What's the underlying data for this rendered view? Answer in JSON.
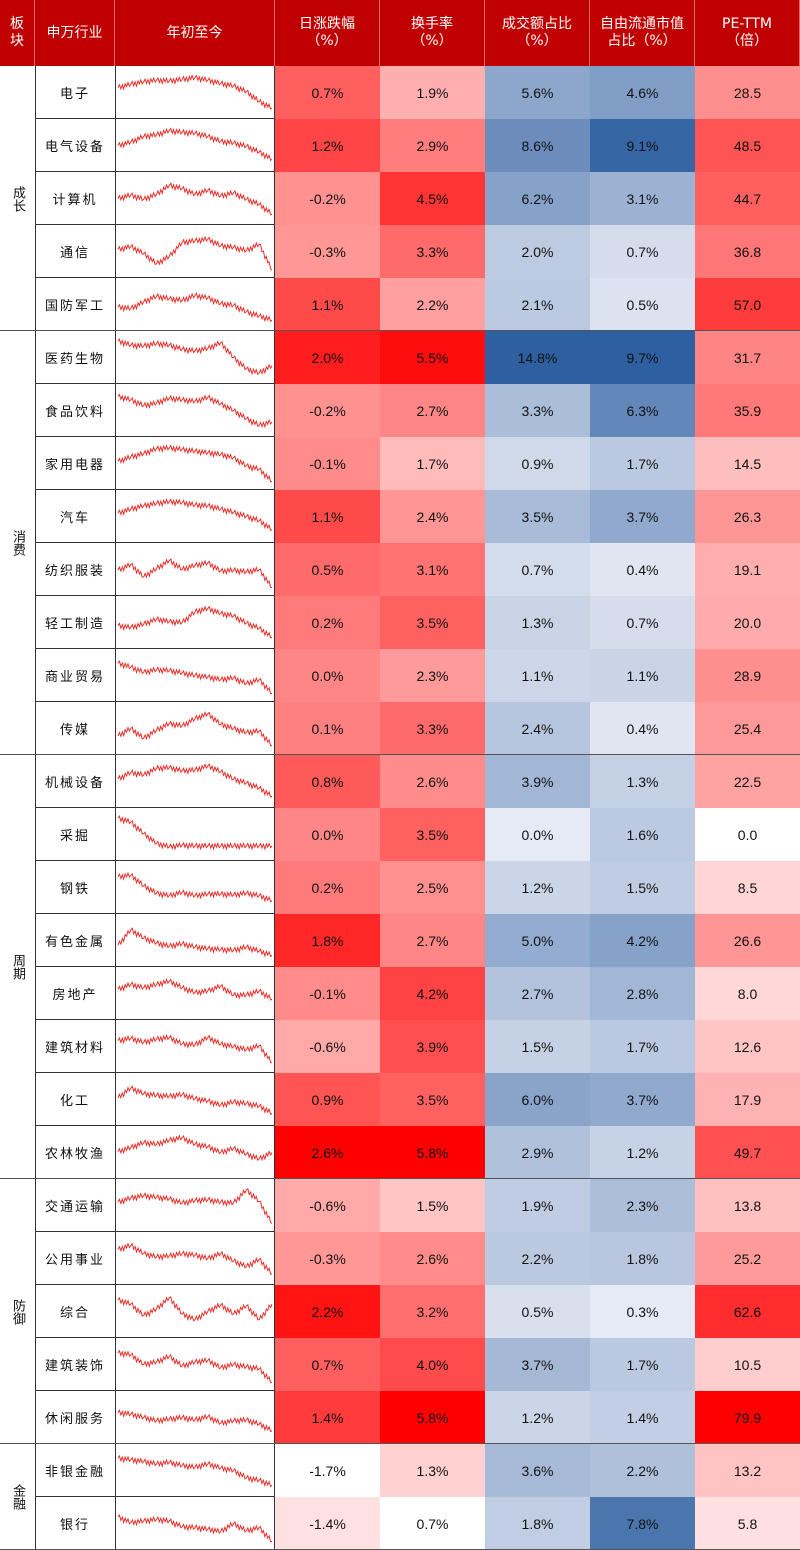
{
  "headers": {
    "sector": "板块",
    "industry": "申万行业",
    "ytd": "年初至今",
    "daily_change": [
      "日涨跌幅",
      "（%）"
    ],
    "turnover": [
      "换手率",
      "（%）"
    ],
    "volume_share": [
      "成交额占比",
      "（%）"
    ],
    "float_cap_share": [
      "自由流通市值",
      "占比（%）"
    ],
    "pe_ttm": [
      "PE-TTM",
      "（倍）"
    ]
  },
  "colors": {
    "header_bg": "#c00000",
    "header_text": "#ffffff",
    "sparkline": "#e8302a",
    "red_scale": "#ff0000",
    "blue_scale": "#2e5fa0"
  },
  "chart_data": {
    "type": "table",
    "columns": [
      "板块",
      "申万行业",
      "年初至今",
      "日涨跌幅（%）",
      "换手率（%）",
      "成交额占比（%）",
      "自由流通市值占比（%）",
      "PE-TTM（倍）"
    ],
    "sectors": [
      {
        "name": "成长",
        "rows": [
          {
            "industry": "电子",
            "daily_change": "0.7%",
            "turnover": "1.9%",
            "volume_share": "5.6%",
            "float_cap_share": "4.6%",
            "pe_ttm": "28.5"
          },
          {
            "industry": "电气设备",
            "daily_change": "1.2%",
            "turnover": "2.9%",
            "volume_share": "8.6%",
            "float_cap_share": "9.1%",
            "pe_ttm": "48.5"
          },
          {
            "industry": "计算机",
            "daily_change": "-0.2%",
            "turnover": "4.5%",
            "volume_share": "6.2%",
            "float_cap_share": "3.1%",
            "pe_ttm": "44.7"
          },
          {
            "industry": "通信",
            "daily_change": "-0.3%",
            "turnover": "3.3%",
            "volume_share": "2.0%",
            "float_cap_share": "0.7%",
            "pe_ttm": "36.8"
          },
          {
            "industry": "国防军工",
            "daily_change": "1.1%",
            "turnover": "2.2%",
            "volume_share": "2.1%",
            "float_cap_share": "0.5%",
            "pe_ttm": "57.0"
          }
        ]
      },
      {
        "name": "消费",
        "rows": [
          {
            "industry": "医药生物",
            "daily_change": "2.0%",
            "turnover": "5.5%",
            "volume_share": "14.8%",
            "float_cap_share": "9.7%",
            "pe_ttm": "31.7"
          },
          {
            "industry": "食品饮料",
            "daily_change": "-0.2%",
            "turnover": "2.7%",
            "volume_share": "3.3%",
            "float_cap_share": "6.3%",
            "pe_ttm": "35.9"
          },
          {
            "industry": "家用电器",
            "daily_change": "-0.1%",
            "turnover": "1.7%",
            "volume_share": "0.9%",
            "float_cap_share": "1.7%",
            "pe_ttm": "14.5"
          },
          {
            "industry": "汽车",
            "daily_change": "1.1%",
            "turnover": "2.4%",
            "volume_share": "3.5%",
            "float_cap_share": "3.7%",
            "pe_ttm": "26.3"
          },
          {
            "industry": "纺织服装",
            "daily_change": "0.5%",
            "turnover": "3.1%",
            "volume_share": "0.7%",
            "float_cap_share": "0.4%",
            "pe_ttm": "19.1"
          },
          {
            "industry": "轻工制造",
            "daily_change": "0.2%",
            "turnover": "3.5%",
            "volume_share": "1.3%",
            "float_cap_share": "0.7%",
            "pe_ttm": "20.0"
          },
          {
            "industry": "商业贸易",
            "daily_change": "0.0%",
            "turnover": "2.3%",
            "volume_share": "1.1%",
            "float_cap_share": "1.1%",
            "pe_ttm": "28.9"
          },
          {
            "industry": "传媒",
            "daily_change": "0.1%",
            "turnover": "3.3%",
            "volume_share": "2.4%",
            "float_cap_share": "0.4%",
            "pe_ttm": "25.4"
          }
        ]
      },
      {
        "name": "周期",
        "rows": [
          {
            "industry": "机械设备",
            "daily_change": "0.8%",
            "turnover": "2.6%",
            "volume_share": "3.9%",
            "float_cap_share": "1.3%",
            "pe_ttm": "22.5"
          },
          {
            "industry": "采掘",
            "daily_change": "0.0%",
            "turnover": "3.5%",
            "volume_share": "0.0%",
            "float_cap_share": "1.6%",
            "pe_ttm": "0.0"
          },
          {
            "industry": "钢铁",
            "daily_change": "0.2%",
            "turnover": "2.5%",
            "volume_share": "1.2%",
            "float_cap_share": "1.5%",
            "pe_ttm": "8.5"
          },
          {
            "industry": "有色金属",
            "daily_change": "1.8%",
            "turnover": "2.7%",
            "volume_share": "5.0%",
            "float_cap_share": "4.2%",
            "pe_ttm": "26.6"
          },
          {
            "industry": "房地产",
            "daily_change": "-0.1%",
            "turnover": "4.2%",
            "volume_share": "2.7%",
            "float_cap_share": "2.8%",
            "pe_ttm": "8.0"
          },
          {
            "industry": "建筑材料",
            "daily_change": "-0.6%",
            "turnover": "3.9%",
            "volume_share": "1.5%",
            "float_cap_share": "1.7%",
            "pe_ttm": "12.6"
          },
          {
            "industry": "化工",
            "daily_change": "0.9%",
            "turnover": "3.5%",
            "volume_share": "6.0%",
            "float_cap_share": "3.7%",
            "pe_ttm": "17.9"
          },
          {
            "industry": "农林牧渔",
            "daily_change": "2.6%",
            "turnover": "5.8%",
            "volume_share": "2.9%",
            "float_cap_share": "1.2%",
            "pe_ttm": "49.7"
          }
        ]
      },
      {
        "name": "防御",
        "rows": [
          {
            "industry": "交通运输",
            "daily_change": "-0.6%",
            "turnover": "1.5%",
            "volume_share": "1.9%",
            "float_cap_share": "2.3%",
            "pe_ttm": "13.8"
          },
          {
            "industry": "公用事业",
            "daily_change": "-0.3%",
            "turnover": "2.6%",
            "volume_share": "2.2%",
            "float_cap_share": "1.8%",
            "pe_ttm": "25.2"
          },
          {
            "industry": "综合",
            "daily_change": "2.2%",
            "turnover": "3.2%",
            "volume_share": "0.5%",
            "float_cap_share": "0.3%",
            "pe_ttm": "62.6"
          },
          {
            "industry": "建筑装饰",
            "daily_change": "0.7%",
            "turnover": "4.0%",
            "volume_share": "3.7%",
            "float_cap_share": "1.7%",
            "pe_ttm": "10.5"
          },
          {
            "industry": "休闲服务",
            "daily_change": "1.4%",
            "turnover": "5.8%",
            "volume_share": "1.2%",
            "float_cap_share": "1.4%",
            "pe_ttm": "79.9"
          }
        ]
      },
      {
        "name": "金融",
        "rows": [
          {
            "industry": "非银金融",
            "daily_change": "-1.7%",
            "turnover": "1.3%",
            "volume_share": "3.6%",
            "float_cap_share": "2.2%",
            "pe_ttm": "13.2"
          },
          {
            "industry": "银行",
            "daily_change": "-1.4%",
            "turnover": "0.7%",
            "volume_share": "1.8%",
            "float_cap_share": "7.8%",
            "pe_ttm": "5.8"
          }
        ]
      }
    ],
    "heat_colors": {
      "daily_change": "red",
      "turnover": "red",
      "volume_share": "blue",
      "float_cap_share": "blue",
      "pe_ttm": "red"
    },
    "sparkline_shapes": {
      "电子": [
        0.62,
        0.7,
        0.76,
        0.8,
        0.78,
        0.82,
        0.86,
        0.8,
        0.72,
        0.66,
        0.52,
        0.28,
        0.12
      ],
      "电气设备": [
        0.5,
        0.58,
        0.72,
        0.76,
        0.86,
        0.82,
        0.8,
        0.72,
        0.6,
        0.56,
        0.48,
        0.34,
        0.16
      ],
      "计算机": [
        0.5,
        0.58,
        0.48,
        0.6,
        0.82,
        0.74,
        0.6,
        0.7,
        0.56,
        0.64,
        0.48,
        0.36,
        0.12
      ],
      "通信": [
        0.55,
        0.62,
        0.45,
        0.2,
        0.38,
        0.72,
        0.76,
        0.8,
        0.64,
        0.6,
        0.52,
        0.68,
        0.05
      ],
      "国防军工": [
        0.44,
        0.4,
        0.56,
        0.7,
        0.64,
        0.6,
        0.72,
        0.66,
        0.52,
        0.48,
        0.32,
        0.22,
        0.12
      ],
      "医药生物": [
        0.9,
        0.8,
        0.78,
        0.84,
        0.8,
        0.7,
        0.66,
        0.72,
        0.86,
        0.5,
        0.22,
        0.12,
        0.3
      ],
      "食品饮料": [
        0.84,
        0.76,
        0.62,
        0.68,
        0.8,
        0.76,
        0.72,
        0.82,
        0.66,
        0.5,
        0.3,
        0.14,
        0.22
      ],
      "家用电器": [
        0.55,
        0.66,
        0.74,
        0.86,
        0.88,
        0.84,
        0.8,
        0.76,
        0.72,
        0.64,
        0.44,
        0.36,
        0.06
      ],
      "汽车": [
        0.58,
        0.68,
        0.76,
        0.82,
        0.86,
        0.84,
        0.78,
        0.76,
        0.68,
        0.6,
        0.5,
        0.4,
        0.18
      ],
      "纺织服装": [
        0.48,
        0.62,
        0.32,
        0.52,
        0.72,
        0.5,
        0.6,
        0.66,
        0.46,
        0.48,
        0.44,
        0.5,
        0.06
      ],
      "轻工制造": [
        0.42,
        0.38,
        0.46,
        0.58,
        0.52,
        0.5,
        0.76,
        0.84,
        0.72,
        0.66,
        0.48,
        0.36,
        0.14
      ],
      "商业贸易": [
        0.8,
        0.7,
        0.58,
        0.64,
        0.62,
        0.56,
        0.5,
        0.46,
        0.4,
        0.44,
        0.3,
        0.4,
        0.06
      ],
      "传媒": [
        0.32,
        0.5,
        0.26,
        0.46,
        0.62,
        0.56,
        0.74,
        0.86,
        0.6,
        0.5,
        0.4,
        0.44,
        0.08
      ],
      "机械设备": [
        0.56,
        0.72,
        0.66,
        0.82,
        0.84,
        0.76,
        0.78,
        0.88,
        0.74,
        0.56,
        0.46,
        0.34,
        0.14
      ],
      "采掘": [
        0.9,
        0.8,
        0.52,
        0.28,
        0.2,
        0.24,
        0.22,
        0.22,
        0.22,
        0.22,
        0.22,
        0.22,
        0.22
      ],
      "钢铁": [
        0.76,
        0.8,
        0.54,
        0.36,
        0.3,
        0.38,
        0.3,
        0.34,
        0.34,
        0.32,
        0.36,
        0.3,
        0.18
      ],
      "有色金属": [
        0.38,
        0.76,
        0.56,
        0.44,
        0.36,
        0.42,
        0.34,
        0.3,
        0.28,
        0.26,
        0.34,
        0.24,
        0.14
      ],
      "房地产": [
        0.6,
        0.72,
        0.64,
        0.72,
        0.8,
        0.64,
        0.52,
        0.56,
        0.68,
        0.46,
        0.46,
        0.56,
        0.36
      ],
      "建筑材料": [
        0.64,
        0.7,
        0.6,
        0.68,
        0.72,
        0.56,
        0.54,
        0.72,
        0.56,
        0.5,
        0.42,
        0.52,
        0.1
      ],
      "化工": [
        0.54,
        0.78,
        0.64,
        0.6,
        0.58,
        0.62,
        0.52,
        0.46,
        0.36,
        0.44,
        0.4,
        0.34,
        0.16
      ],
      "农林牧渔": [
        0.52,
        0.62,
        0.74,
        0.7,
        0.8,
        0.86,
        0.7,
        0.64,
        0.5,
        0.6,
        0.46,
        0.34,
        0.5
      ],
      "交通运输": [
        0.58,
        0.68,
        0.74,
        0.7,
        0.66,
        0.56,
        0.62,
        0.64,
        0.58,
        0.56,
        0.88,
        0.6,
        0.06
      ],
      "公用事业": [
        0.72,
        0.82,
        0.62,
        0.54,
        0.56,
        0.62,
        0.58,
        0.5,
        0.62,
        0.44,
        0.3,
        0.48,
        0.12
      ],
      "综合": [
        0.78,
        0.68,
        0.4,
        0.56,
        0.84,
        0.44,
        0.3,
        0.5,
        0.66,
        0.44,
        0.64,
        0.3,
        0.68
      ],
      "建筑装饰": [
        0.78,
        0.74,
        0.5,
        0.56,
        0.7,
        0.46,
        0.56,
        0.6,
        0.42,
        0.5,
        0.44,
        0.4,
        0.06
      ],
      "休闲服务": [
        0.62,
        0.58,
        0.5,
        0.42,
        0.46,
        0.5,
        0.44,
        0.52,
        0.36,
        0.42,
        0.44,
        0.34,
        0.18
      ],
      "非银金融": [
        0.8,
        0.76,
        0.72,
        0.66,
        0.7,
        0.62,
        0.58,
        0.66,
        0.56,
        0.5,
        0.32,
        0.26,
        0.14
      ],
      "银行": [
        0.66,
        0.52,
        0.56,
        0.6,
        0.56,
        0.42,
        0.4,
        0.36,
        0.3,
        0.5,
        0.32,
        0.4,
        0.06
      ]
    }
  }
}
